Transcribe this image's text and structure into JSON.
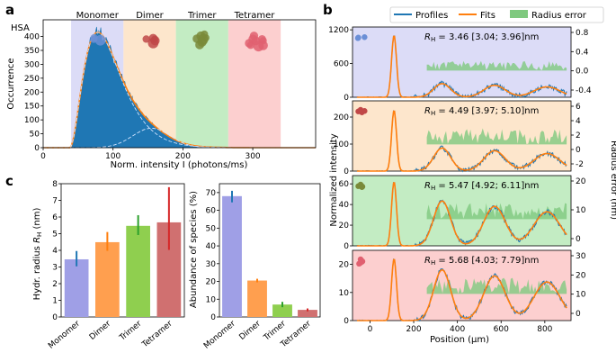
{
  "panel_labels": {
    "a": "a",
    "b": "b",
    "c": "c"
  },
  "colors": {
    "hist": "#1f77b4",
    "fit": "#ff7f0e",
    "err": "#7fc97f",
    "monomer": "#9f9fe6",
    "dimer": "#ff9f4f",
    "trimer": "#8fcf4f",
    "tetramer": "#d07070",
    "monomer_bg": "#dcdcf7",
    "dimer_bg": "#fde6cc",
    "trimer_bg": "#c3ecc3",
    "tetramer_bg": "#fccfcf"
  },
  "chart_data": [
    {
      "id": "a",
      "type": "bar",
      "title": "HSA",
      "xlabel": "Norm. intensity I (photons/ms)",
      "ylabel": "Occurrence",
      "xlim": [
        0,
        390
      ],
      "ylim": [
        0,
        460
      ],
      "xticks": [
        "0",
        "100",
        "200",
        "300"
      ],
      "yticks": [
        "0",
        "50",
        "100",
        "150",
        "200",
        "250",
        "300",
        "350",
        "400"
      ],
      "bands": [
        {
          "label": "Monomer",
          "range": [
            40,
            115
          ]
        },
        {
          "label": "Dimer",
          "range": [
            115,
            190
          ]
        },
        {
          "label": "Trimer",
          "range": [
            190,
            265
          ]
        },
        {
          "label": "Tetramer",
          "range": [
            265,
            340
          ]
        }
      ],
      "peak_x": 78,
      "peak_y": 415,
      "dimer_peak_x": 155,
      "dimer_peak_y": 70
    },
    {
      "id": "b",
      "type": "line",
      "xlabel": "Position (μm)",
      "ylabel": "Normalized intensity",
      "ylabel_right": "Radius error (nm)",
      "legend": [
        "Profiles",
        "Fits",
        "Radius error"
      ],
      "xlim": [
        -80,
        920
      ],
      "xticks": [
        "0",
        "200",
        "400",
        "600",
        "800"
      ],
      "subplots": [
        {
          "species": "Monomer",
          "rh_label": "R",
          "rh_sub": "H",
          "rh_text": "= 3.46 [3.04; 3.96]nm",
          "yticks_left": [
            "0",
            "600",
            "1200"
          ],
          "yticks_right": [
            "0.8",
            "0.4",
            "0.0",
            "-0.4"
          ],
          "peak": 1100,
          "ylim": [
            0,
            1250
          ],
          "fold": 0.22
        },
        {
          "species": "Dimer",
          "rh_label": "R",
          "rh_sub": "H",
          "rh_text": "= 4.49 [3.97; 5.10]nm",
          "yticks_left": [
            "0",
            "100",
            "200"
          ],
          "yticks_right": [
            "6",
            "4",
            "2",
            "0",
            "-2"
          ],
          "peak": 225,
          "ylim": [
            0,
            260
          ],
          "fold": 0.38
        },
        {
          "species": "Trimer",
          "rh_label": "R",
          "rh_sub": "H",
          "rh_text": "= 5.47 [4.92; 6.11]nm",
          "yticks_left": [
            "0",
            "20",
            "40",
            "60"
          ],
          "yticks_right": [
            "20",
            "10",
            "0"
          ],
          "peak": 62,
          "ylim": [
            0,
            68
          ],
          "fold": 0.7
        },
        {
          "species": "Tetramer",
          "rh_label": "R",
          "rh_sub": "H",
          "rh_text": "= 5.68 [4.03; 7.79]nm",
          "yticks_left": [
            "0",
            "10",
            "20"
          ],
          "yticks_right": [
            "30",
            "20",
            "10",
            "0"
          ],
          "peak": 22,
          "ylim": [
            0,
            25
          ],
          "fold": 0.82
        }
      ]
    },
    {
      "id": "c1",
      "type": "bar",
      "ylabel": "Hydr. radius R_H (nm)",
      "ylabel_main": "Hydr. radius ",
      "ylabel_var": "R",
      "ylabel_sub": "H",
      "ylabel_unit": " (nm)",
      "categories": [
        "Monomer",
        "Dimer",
        "Trimer",
        "Tetramer"
      ],
      "values": [
        3.46,
        4.49,
        5.47,
        5.68
      ],
      "err_low": [
        3.04,
        3.97,
        4.92,
        4.03
      ],
      "err_high": [
        3.96,
        5.1,
        6.11,
        7.79
      ],
      "ylim": [
        0,
        8
      ],
      "yticks": [
        "0",
        "1",
        "2",
        "3",
        "4",
        "5",
        "6",
        "7",
        "8"
      ]
    },
    {
      "id": "c2",
      "type": "bar",
      "ylabel": "Abundance of species (%)",
      "categories": [
        "Monomer",
        "Dimer",
        "Trimer",
        "Tetramer"
      ],
      "values": [
        68,
        20.5,
        7,
        4
      ],
      "err_low": [
        64.5,
        19.5,
        5.5,
        3.2
      ],
      "err_high": [
        71,
        21.5,
        8.5,
        4.8
      ],
      "ylim": [
        0,
        75
      ],
      "yticks": [
        "0",
        "10",
        "20",
        "30",
        "40",
        "50",
        "60",
        "70"
      ]
    }
  ]
}
